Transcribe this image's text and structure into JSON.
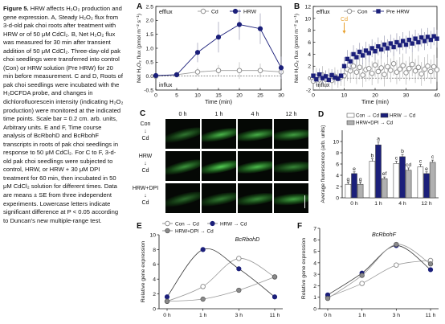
{
  "caption": {
    "figure_label": "Figure 5.",
    "title": "HRW affects H₂O₂ production and gene expression.",
    "body": "A, Steady H₂O₂ flux from 3-d-old pak choi roots after treatment with HRW or of 50 μM CdCl₂. B, Net H₂O₂ flux was measured for 30 min after transient addition of 50 μM CdCl₂. Three-day-old pak choi seedlings were transferred into control (Con) or HRW solution (Pre HRW) for 20 min before measurement. C and D, Roots of pak choi seedlings were incubated with the H₂DCFDA probe, and changes in dichlorofluorescein intensity (indicating H₂O₂ production) were monitored at the indicated time points. Scale bar = 0.2 cm. arb. units, Arbitrary units. E and F, Time course analysis of BcRbohD and BcRbohF transcripts in roots of pak choi seedlings in response to 50 μM CdCl₂. For C to F, 3-d-old pak choi seedlings were subjected to control, HRW, or HRW + 30 μM DPI treatment for 60 min, then incubated in 50 μM CdCl₂ solution for different times. Data are means ± SE from three independent experiments. Lowercase letters indicate significant difference at P < 0.05 according to Duncan's new multiple-range test."
  },
  "chart_data": [
    {
      "panel": "A",
      "type": "line",
      "ylabel": "Net H₂O₂ flux (pmol m⁻² s⁻¹)",
      "xlabel": "Time (min)",
      "xlim": [
        0,
        30
      ],
      "ylim": [
        -0.5,
        2.5
      ],
      "xticks": [
        0,
        5,
        10,
        15,
        20,
        25,
        30
      ],
      "yticks": [
        -0.5,
        0.0,
        0.5,
        1.0,
        1.5,
        2.0,
        2.5
      ],
      "ytick_labels": [
        "-0.5",
        "0.0",
        "0.5",
        "1.0",
        "1.5",
        "2.0",
        "2.5"
      ],
      "annotations": [
        "efflux",
        "influx"
      ],
      "legend": "top",
      "series": [
        {
          "name": "Cd",
          "marker": "open-circle",
          "color": "#9a9a9a",
          "x": [
            0,
            5,
            10,
            15,
            20,
            25,
            30
          ],
          "y": [
            0.0,
            0.05,
            0.15,
            0.2,
            0.2,
            0.2,
            0.15
          ],
          "err": [
            0.03,
            0.05,
            0.15,
            0.2,
            0.3,
            0.25,
            0.15
          ]
        },
        {
          "name": "HRW",
          "marker": "filled-circle",
          "color": "#1b1f7a",
          "x": [
            0,
            5,
            10,
            15,
            20,
            25,
            30
          ],
          "y": [
            0.02,
            0.05,
            0.85,
            1.4,
            1.85,
            1.7,
            0.3
          ],
          "err": [
            0.05,
            0.1,
            0.35,
            0.55,
            0.55,
            0.55,
            0.4
          ]
        }
      ]
    },
    {
      "panel": "B",
      "type": "line",
      "ylabel": "Net H₂O₂ flux (pmol m⁻² s⁻¹)",
      "xlabel": "Time (min)",
      "xlim": [
        0,
        40
      ],
      "ylim": [
        -2,
        12
      ],
      "xticks": [
        0,
        10,
        20,
        30,
        40
      ],
      "yticks": [
        -2,
        0,
        2,
        4,
        6,
        8,
        10,
        12
      ],
      "ytick_labels": [
        "-2",
        "0",
        "2",
        "4",
        "6",
        "8",
        "10",
        "12"
      ],
      "annotations": [
        "efflux",
        "influx",
        "Cd"
      ],
      "event_x": 10,
      "legend": "top",
      "series": [
        {
          "name": "Con",
          "marker": "open-circle",
          "color": "#9a9a9a",
          "x": [
            0,
            1,
            2,
            3,
            4,
            5,
            6,
            7,
            8,
            9,
            10,
            11,
            12,
            13,
            14,
            15,
            16,
            17,
            18,
            19,
            20,
            21,
            22,
            23,
            24,
            25,
            26,
            27,
            28,
            29,
            30,
            31,
            32,
            33,
            34,
            35,
            36,
            37,
            38,
            39,
            40
          ],
          "y": [
            -0.5,
            0.2,
            -0.3,
            0.5,
            -0.2,
            0.1,
            -0.4,
            0.3,
            -0.1,
            0.2,
            0.4,
            1.5,
            1.2,
            2.0,
            1.0,
            1.8,
            0.5,
            1.4,
            1.6,
            0.8,
            2.2,
            1.1,
            1.7,
            0.6,
            1.9,
            1.3,
            2.4,
            1.0,
            1.5,
            2.1,
            0.9,
            1.6,
            2.3,
            1.2,
            1.8,
            0.7,
            1.5,
            2.0,
            1.1,
            1.9,
            1.4
          ],
          "err": [
            1.5,
            1.5,
            1.5,
            1.5,
            1.5,
            1.5,
            1.5,
            1.5,
            1.5,
            1.5,
            1.8,
            2,
            2,
            2,
            2,
            2,
            2,
            2,
            2,
            2,
            2,
            2,
            2,
            2,
            2,
            2,
            2,
            2,
            2,
            2,
            2,
            2,
            2,
            2,
            2,
            2,
            2,
            2,
            2,
            2,
            2
          ]
        },
        {
          "name": "Pre HRW",
          "marker": "filled-square",
          "color": "#1b1f7a",
          "x": [
            0,
            1,
            2,
            3,
            4,
            5,
            6,
            7,
            8,
            9,
            10,
            11,
            12,
            13,
            14,
            15,
            16,
            17,
            18,
            19,
            20,
            21,
            22,
            23,
            24,
            25,
            26,
            27,
            28,
            29,
            30,
            31,
            32,
            33,
            34,
            35,
            36,
            37,
            38,
            39,
            40
          ],
          "y": [
            0.4,
            -0.2,
            0.6,
            0.0,
            0.3,
            -0.3,
            0.5,
            0.1,
            -0.1,
            0.4,
            2.0,
            3.2,
            2.8,
            4.0,
            3.5,
            4.4,
            3.8,
            4.6,
            4.2,
            5.0,
            4.5,
            5.3,
            4.8,
            5.6,
            5.0,
            5.8,
            5.2,
            6.0,
            5.5,
            6.2,
            5.6,
            6.4,
            5.8,
            6.6,
            6.0,
            6.8,
            6.2,
            6.9,
            6.4,
            7.0,
            6.6
          ],
          "err": [
            1,
            1,
            1,
            1,
            1,
            1,
            1,
            1,
            1,
            1,
            1.5,
            1.5,
            1.5,
            1.5,
            1.5,
            1.5,
            1.5,
            1.5,
            1.5,
            1.5,
            1.5,
            1.5,
            1.5,
            1.5,
            1.5,
            1.5,
            1.5,
            1.5,
            1.5,
            1.5,
            1.5,
            1.5,
            1.5,
            1.5,
            1.5,
            1.5,
            1.5,
            1.5,
            1.5,
            1.5,
            1.5
          ]
        }
      ]
    },
    {
      "panel": "D",
      "type": "bar",
      "ylabel": "Average fluorescence (arb. units)",
      "categories": [
        "0 h",
        "1 h",
        "4 h",
        "12 h"
      ],
      "ylim": [
        0,
        12
      ],
      "yticks": [
        0,
        2,
        4,
        6,
        8,
        10
      ],
      "legend": "top",
      "series": [
        {
          "name": "Con → Cd",
          "color": "#ffffff",
          "values": [
            2.4,
            6.5,
            6.1,
            5.5
          ],
          "err": [
            0.3,
            0.4,
            0.4,
            0.4
          ],
          "letters": [
            "g",
            "b",
            "c",
            "c"
          ]
        },
        {
          "name": "HRW → Cd",
          "color": "#1b1f7a",
          "values": [
            4.3,
            9.4,
            7.3,
            4.3
          ],
          "err": [
            0.3,
            0.5,
            0.4,
            0.3
          ],
          "letters": [
            "e",
            "a",
            "b",
            "e"
          ]
        },
        {
          "name": "HRW+DPI → Cd",
          "color": "#b0b0b0",
          "values": [
            2.4,
            3.4,
            4.9,
            6.3
          ],
          "err": [
            0.3,
            0.3,
            0.4,
            0.4
          ],
          "letters": [
            "g",
            "ef",
            "cd",
            "c"
          ]
        }
      ]
    },
    {
      "panel": "E",
      "type": "line",
      "title": "BcRbohD",
      "ylabel": "Relative gene expression",
      "categories": [
        "0 h",
        "1 h",
        "3 h",
        "11 h"
      ],
      "ylim": [
        0,
        10
      ],
      "yticks": [
        0,
        2,
        4,
        6,
        8,
        10
      ],
      "legend": "top",
      "series": [
        {
          "name": "Con → Cd",
          "marker": "open-circle",
          "color": "#9a9a9a",
          "values": [
            1.0,
            3.0,
            6.8,
            4.3
          ]
        },
        {
          "name": "HRW → Cd",
          "marker": "filled-circle",
          "color": "#1b1f7a",
          "values": [
            1.6,
            8.0,
            5.4,
            1.6
          ]
        },
        {
          "name": "HRW+DPI → Cd",
          "marker": "filled-circle-gray",
          "color": "#8a8a8a",
          "values": [
            1.0,
            1.3,
            2.5,
            4.3
          ]
        }
      ]
    },
    {
      "panel": "F",
      "type": "line",
      "title": "BcRbohF",
      "ylabel": "Relative gene expression",
      "categories": [
        "0 h",
        "1 h",
        "3 h",
        "11 h"
      ],
      "ylim": [
        0,
        7
      ],
      "yticks": [
        0,
        1,
        2,
        3,
        4,
        5,
        6,
        7
      ],
      "series": [
        {
          "name": "Con → Cd",
          "marker": "open-circle",
          "color": "#9a9a9a",
          "values": [
            1.0,
            2.2,
            3.8,
            4.2
          ]
        },
        {
          "name": "HRW → Cd",
          "marker": "filled-circle",
          "color": "#1b1f7a",
          "values": [
            1.2,
            3.1,
            5.5,
            3.4
          ]
        },
        {
          "name": "HRW+DPI → Cd",
          "marker": "filled-circle-gray",
          "color": "#8a8a8a",
          "values": [
            0.9,
            2.9,
            5.6,
            3.9
          ]
        }
      ]
    }
  ],
  "micrograph": {
    "panel": "C",
    "columns": [
      "0 h",
      "1 h",
      "4 h",
      "12 h"
    ],
    "rows": [
      {
        "label": "Con",
        "arrow": "↓",
        "target": "Cd",
        "intensity": [
          0.35,
          0.75,
          0.7,
          0.6
        ]
      },
      {
        "label": "HRW",
        "arrow": "↓",
        "target": "Cd",
        "intensity": [
          0.55,
          0.9,
          0.8,
          0.45
        ]
      },
      {
        "label": "HRW+DPI",
        "arrow": "↓",
        "target": "Cd",
        "intensity": [
          0.3,
          0.4,
          0.5,
          0.65
        ]
      }
    ]
  },
  "panel_labels": [
    "A",
    "B",
    "C",
    "D",
    "E",
    "F"
  ]
}
